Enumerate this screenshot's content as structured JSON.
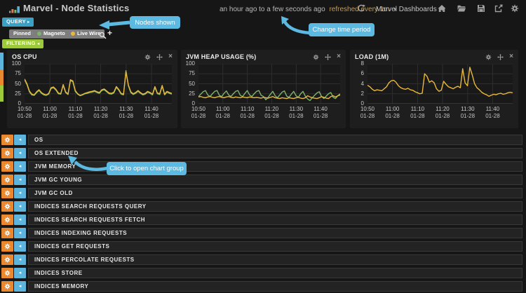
{
  "header": {
    "title": "Marvel - Node Statistics",
    "time_range": "an hour ago to a few seconds ago",
    "refresh_text": "refreshed every 1m",
    "dashboards_label": "Marvel Dashboards"
  },
  "toolbar": {
    "query_label": "QUERY",
    "pinned_label": "Pinned",
    "filtering_label": "FILTERING",
    "nodes": [
      {
        "name": "Magneto",
        "color": "#7EB26D"
      },
      {
        "name": "Live Wire",
        "color": "#EAB839"
      }
    ]
  },
  "callouts": {
    "nodes_shown": "Nodes shown",
    "change_time": "Change time period",
    "open_group": "Click to open chart group"
  },
  "rows": [
    "OS",
    "OS EXTENDED",
    "JVM MEMORY",
    "JVM GC YOUNG",
    "JVM GC OLD",
    "INDICES SEARCH REQUESTS QUERY",
    "INDICES SEARCH REQUESTS FETCH",
    "INDICES INDEXING REQUESTS",
    "INDICES GET REQUESTS",
    "INDICES PERCOLATE REQUESTS",
    "INDICES STORE",
    "INDICES MEMORY"
  ],
  "icons": {
    "caret_down": "▾",
    "caret_right": "▸",
    "caret_left": "◂",
    "plus": "+",
    "close": "×"
  },
  "colors": {
    "callout": "#5bb9e2",
    "accent_orange": "#e9882f",
    "accent_blue": "#5db5dd",
    "accent_green": "#9dca3a",
    "query_blue": "#3aa0c6",
    "refresh_link": "#c59b51",
    "series_green": "#7EB26D",
    "series_yellow": "#EAB839"
  },
  "chart_data": [
    {
      "type": "line",
      "title": "OS CPU",
      "ylim": [
        0,
        100
      ],
      "ymax": 100,
      "yticks": [
        0,
        25,
        50,
        75,
        100
      ],
      "xticks": [
        {
          "time": "10:50",
          "date": "01-28",
          "f": 0
        },
        {
          "time": "11:00",
          "date": "01-28",
          "f": 0.172
        },
        {
          "time": "11:10",
          "date": "01-28",
          "f": 0.345
        },
        {
          "time": "11:20",
          "date": "01-28",
          "f": 0.517
        },
        {
          "time": "11:30",
          "date": "01-28",
          "f": 0.69
        },
        {
          "time": "11:40",
          "date": "01-28",
          "f": 0.862
        }
      ],
      "series": [
        {
          "name": "Magneto",
          "color": "#7EB26D",
          "values": [
            60,
            48,
            30,
            22,
            21,
            28,
            33,
            26,
            22,
            21,
            24,
            38,
            40,
            34,
            25,
            24,
            46,
            28,
            23,
            58,
            55,
            31,
            24,
            20,
            22,
            25,
            26,
            28,
            29,
            31,
            28,
            26,
            33,
            35,
            30,
            25,
            24,
            27,
            41,
            34,
            24,
            22,
            83,
            45,
            28,
            23,
            26,
            31,
            26,
            22,
            24,
            29,
            26,
            22,
            41,
            25,
            23,
            44,
            22,
            29,
            26,
            24
          ]
        },
        {
          "name": "Live Wire",
          "color": "#EAB839",
          "values": [
            62,
            50,
            32,
            24,
            22,
            30,
            35,
            28,
            24,
            22,
            26,
            40,
            42,
            36,
            27,
            25,
            48,
            30,
            24,
            60,
            57,
            33,
            25,
            21,
            23,
            26,
            28,
            30,
            31,
            33,
            30,
            28,
            35,
            37,
            32,
            27,
            26,
            29,
            43,
            36,
            26,
            24,
            80,
            47,
            30,
            25,
            28,
            33,
            28,
            24,
            26,
            31,
            28,
            24,
            43,
            27,
            25,
            46,
            24,
            31,
            28,
            26
          ]
        }
      ]
    },
    {
      "type": "line",
      "title": "JVM HEAP USAGE (%)",
      "ylim": [
        0,
        100
      ],
      "ymax": 100,
      "yticks": [
        0,
        25,
        50,
        75,
        100
      ],
      "xticks": [
        {
          "time": "10:50",
          "date": "01-28",
          "f": 0
        },
        {
          "time": "11:00",
          "date": "01-28",
          "f": 0.172
        },
        {
          "time": "11:10",
          "date": "01-28",
          "f": 0.345
        },
        {
          "time": "11:20",
          "date": "01-28",
          "f": 0.517
        },
        {
          "time": "11:30",
          "date": "01-28",
          "f": 0.69
        },
        {
          "time": "11:40",
          "date": "01-28",
          "f": 0.862
        }
      ],
      "series": [
        {
          "name": "Magneto",
          "color": "#7EB26D",
          "values": [
            18,
            24,
            30,
            33,
            22,
            18,
            25,
            31,
            33,
            21,
            18,
            26,
            32,
            22,
            18,
            25,
            31,
            33,
            21,
            18,
            26,
            33,
            22,
            18,
            25,
            31,
            33,
            21,
            18,
            10,
            16,
            24,
            31,
            20,
            15,
            22,
            29,
            32,
            19,
            16,
            24,
            31,
            20,
            16,
            25,
            31,
            19,
            12,
            8,
            15,
            21,
            27,
            30,
            18,
            13,
            19,
            25,
            28,
            16,
            13,
            20,
            25
          ]
        },
        {
          "name": "Live Wire",
          "color": "#EAB839",
          "values": [
            17,
            18,
            16,
            15,
            17,
            18,
            16,
            15,
            17,
            18,
            16,
            15,
            17,
            18,
            16,
            15,
            17,
            16,
            15,
            17,
            16,
            15,
            17,
            16,
            15,
            16,
            15,
            14,
            16,
            15,
            14,
            16,
            18,
            15,
            14,
            13,
            15,
            14,
            13,
            15,
            14,
            13,
            15,
            16,
            14,
            13,
            15,
            20,
            17,
            15,
            14,
            13,
            15,
            18,
            16,
            14,
            13,
            18,
            20,
            17,
            20,
            22
          ]
        }
      ]
    },
    {
      "type": "line",
      "title": "LOAD (1M)",
      "ylim": [
        0,
        8
      ],
      "ymax": 8,
      "yticks": [
        0,
        2,
        4,
        6,
        8
      ],
      "xticks": [
        {
          "time": "10:50",
          "date": "01-28",
          "f": 0
        },
        {
          "time": "11:00",
          "date": "01-28",
          "f": 0.172
        },
        {
          "time": "11:10",
          "date": "01-28",
          "f": 0.345
        },
        {
          "time": "11:20",
          "date": "01-28",
          "f": 0.517
        },
        {
          "time": "11:30",
          "date": "01-28",
          "f": 0.69
        },
        {
          "time": "11:40",
          "date": "01-28",
          "f": 0.862
        }
      ],
      "series": [
        {
          "name": "Live Wire",
          "color": "#EAB839",
          "values": [
            3.7,
            3.4,
            2.9,
            2.6,
            2.8,
            2.7,
            2.6,
            3.0,
            3.4,
            4.2,
            4.6,
            4.7,
            4.3,
            3.6,
            3.2,
            3.0,
            2.9,
            3.1,
            2.8,
            2.7,
            2.4,
            2.2,
            2.0,
            2.1,
            6.0,
            5.5,
            4.3,
            4.6,
            4.2,
            3.0,
            2.5,
            2.7,
            4.5,
            3.9,
            3.4,
            3.2,
            3.0,
            3.3,
            3.5,
            3.2,
            7.0,
            4.2,
            3.6,
            7.3,
            5.8,
            4.0,
            3.2,
            2.8,
            2.3,
            2.0,
            1.8,
            1.5,
            1.7,
            1.9,
            1.8,
            2.0,
            2.1,
            1.9,
            2.0,
            2.2,
            2.3,
            2.2
          ]
        }
      ]
    }
  ]
}
